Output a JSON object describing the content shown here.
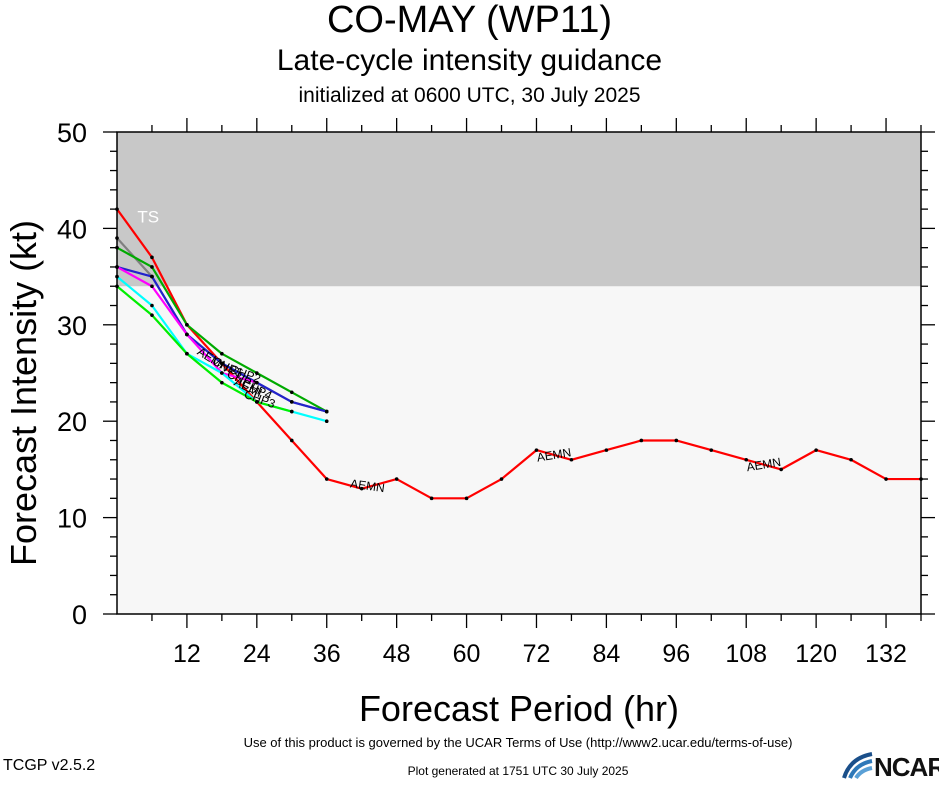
{
  "chart_data": {
    "type": "line",
    "title": "CO-MAY (WP11)",
    "subtitle": "Late-cycle intensity guidance",
    "init_text": "initialized at 0600 UTC, 30 July 2025",
    "xlabel": "Forecast Period (hr)",
    "ylabel": "Forecast Intensity (kt)",
    "xlim": [
      0,
      138
    ],
    "ylim": [
      0,
      50
    ],
    "xticks": [
      12,
      24,
      36,
      48,
      60,
      72,
      84,
      96,
      108,
      120,
      132
    ],
    "yticks": [
      0,
      10,
      20,
      30,
      40,
      50
    ],
    "bands": [
      {
        "label": "TS",
        "y0": 34,
        "y1": 50,
        "color": "#c8c8c8"
      }
    ],
    "background_color": "#f7f7f7",
    "series": [
      {
        "name": "AEMN",
        "color": "#ff0000",
        "x": [
          0,
          6,
          12,
          18,
          24,
          30,
          36,
          42,
          48,
          54,
          60,
          66,
          72,
          78,
          84,
          90,
          96,
          102,
          108,
          114,
          120,
          126,
          132,
          138
        ],
        "y": [
          42,
          37,
          30,
          26,
          22,
          18,
          14,
          13,
          14,
          12,
          12,
          14,
          17,
          16,
          17,
          18,
          18,
          17,
          16,
          15,
          17,
          16,
          14,
          14
        ]
      },
      {
        "name": "AEMI",
        "color": "#808080",
        "x": [
          0,
          6,
          12,
          18,
          24,
          30,
          36
        ],
        "y": [
          39,
          35,
          29,
          26,
          24,
          22,
          21
        ]
      },
      {
        "name": "CHP1",
        "color": "#00aa00",
        "x": [
          0,
          6,
          12,
          18,
          24,
          30,
          36
        ],
        "y": [
          38,
          36,
          30,
          27,
          25,
          23,
          21
        ]
      },
      {
        "name": "CHP2",
        "color": "#2222cc",
        "x": [
          0,
          6,
          12,
          18,
          24,
          30,
          36
        ],
        "y": [
          36,
          35,
          29,
          26,
          24,
          22,
          21
        ]
      },
      {
        "name": "CHP3",
        "color": "#ff00ff",
        "x": [
          0,
          6,
          12,
          18,
          24
        ],
        "y": [
          36,
          34,
          29,
          25,
          24
        ]
      },
      {
        "name": "CHP4",
        "color": "#00ffff",
        "x": [
          0,
          6,
          12,
          18,
          24,
          30,
          36
        ],
        "y": [
          35,
          32,
          27,
          25,
          22,
          21,
          20
        ]
      },
      {
        "name": "CHP5",
        "color": "#00ee00",
        "x": [
          0,
          6,
          12,
          18,
          24,
          30
        ],
        "y": [
          34,
          31,
          27,
          24,
          22,
          21
        ]
      }
    ],
    "labels": [
      {
        "text": "AEMN",
        "x": 16.5,
        "y": 26.4,
        "angle": 32
      },
      {
        "text": "CHP2",
        "x": 22.0,
        "y": 24.9,
        "angle": 20
      },
      {
        "text": "CHP5",
        "x": 19.0,
        "y": 25.6,
        "angle": 26
      },
      {
        "text": "CHP1",
        "x": 21.5,
        "y": 24.3,
        "angle": 25
      },
      {
        "text": "AEMI",
        "x": 22.5,
        "y": 23.5,
        "angle": 25
      },
      {
        "text": "CHP4",
        "x": 24.0,
        "y": 23.3,
        "angle": 25
      },
      {
        "text": "CHP3",
        "x": 24.5,
        "y": 22.3,
        "angle": 20
      },
      {
        "text": "AEMN",
        "x": 43.0,
        "y": 13.3,
        "angle": 8
      },
      {
        "text": "AEMN",
        "x": 75.0,
        "y": 16.5,
        "angle": -9
      },
      {
        "text": "AEMN",
        "x": 111.0,
        "y": 15.5,
        "angle": -9
      }
    ]
  },
  "footer": {
    "terms": "Use of this product is governed by the UCAR Terms of Use (http://www2.ucar.edu/terms-of-use)",
    "version": "TCGP v2.5.2",
    "generated": "Plot generated at 1751 UTC   30 July 2025",
    "logo_text": "NCAR"
  }
}
